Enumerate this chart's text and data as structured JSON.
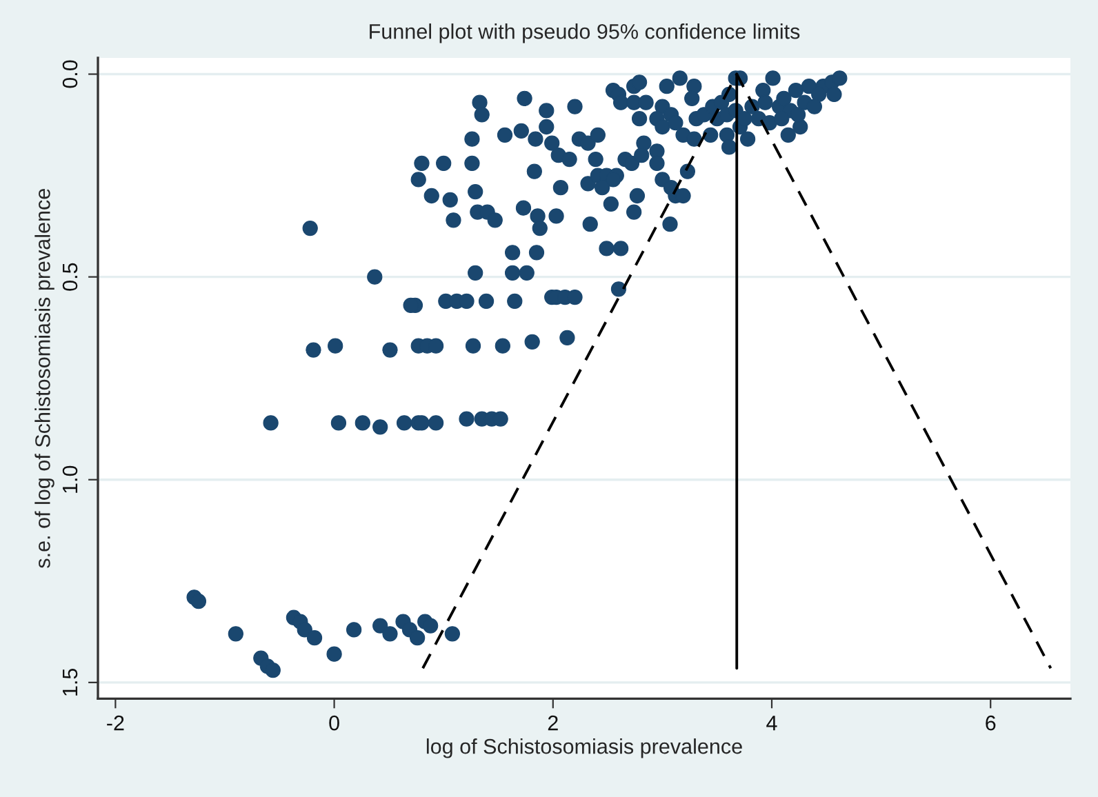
{
  "chart_data": {
    "type": "scatter",
    "title": "Funnel plot with pseudo 95% confidence limits",
    "xlabel": "log of Schistosomiasis prevalence",
    "ylabel": "s.e. of log of Schistosomiasis prevalence",
    "xlim": [
      -2.16,
      6.73
    ],
    "xticks": [
      -2,
      0,
      2,
      4,
      6
    ],
    "ylim": [
      1.54,
      -0.04
    ],
    "yticks": [
      {
        "value": 0,
        "label": "0.0"
      },
      {
        "value": 0.5,
        "label": "0.5"
      },
      {
        "value": 1,
        "label": "1.0"
      },
      {
        "value": 1.5,
        "label": "1.5"
      }
    ],
    "grid": "y",
    "legend": false,
    "series": [
      {
        "color": "#1a476f",
        "marker": "circle",
        "x": [
          1.33,
          1.35,
          1.74,
          1.94,
          1.26,
          1.56,
          1.71,
          1.84,
          1.94,
          0.8,
          1.0,
          1.26,
          1.83,
          0.77,
          0.89,
          1.06,
          1.29,
          1.31,
          1.4,
          1.47,
          1.09,
          1.73,
          1.86,
          1.88,
          -0.22,
          1.63,
          1.85,
          0.37,
          1.29,
          1.63,
          1.76,
          0.74,
          0.7,
          1.02,
          1.12,
          1.21,
          1.39,
          1.65,
          1.99,
          -0.19,
          0.01,
          0.51,
          0.77,
          0.85,
          0.93,
          1.27,
          1.54,
          1.81,
          2.13,
          -0.58,
          0.04,
          0.26,
          0.42,
          0.64,
          0.77,
          0.8,
          0.93,
          1.21,
          1.35,
          1.44,
          1.52,
          -1.28,
          -1.24,
          -0.9,
          -0.67,
          -0.61,
          -0.56,
          -0.37,
          -0.31,
          -0.27,
          -0.18,
          0.0,
          0.18,
          0.42,
          0.51,
          0.63,
          0.69,
          0.76,
          0.83,
          0.88,
          1.08,
          2.2,
          1.99,
          2.05,
          2.15,
          2.24,
          2.32,
          2.41,
          2.39,
          2.07,
          2.32,
          2.41,
          2.49,
          2.58,
          2.55,
          2.45,
          2.66,
          2.72,
          2.83,
          2.81,
          2.95,
          2.95,
          2.03,
          2.53,
          2.77,
          2.74,
          3.0,
          3.08,
          3.12,
          3.19,
          3.23,
          2.34,
          3.07,
          2.49,
          2.62,
          2.03,
          2.11,
          2.2,
          2.6,
          2.55,
          2.6,
          2.74,
          2.79,
          2.62,
          2.74,
          2.85,
          2.79,
          3.04,
          3.16,
          3.29,
          3.27,
          3.0,
          2.95,
          3.08,
          3.0,
          3.12,
          3.19,
          3.29,
          3.31,
          3.38,
          3.46,
          3.54,
          3.61,
          3.67,
          3.71,
          3.5,
          3.59,
          3.44,
          3.59,
          3.71,
          3.61,
          3.78,
          3.67,
          3.75,
          3.82,
          3.92,
          4.01,
          3.94,
          3.88,
          3.98,
          4.07,
          4.11,
          4.22,
          4.34,
          4.47,
          4.55,
          4.62,
          4.57,
          4.43,
          4.3,
          4.39,
          4.17,
          4.09,
          4.26,
          4.15,
          4.24
        ],
        "values": [
          0.07,
          0.1,
          0.06,
          0.09,
          0.16,
          0.15,
          0.14,
          0.16,
          0.13,
          0.22,
          0.22,
          0.22,
          0.24,
          0.26,
          0.3,
          0.31,
          0.29,
          0.34,
          0.34,
          0.36,
          0.36,
          0.33,
          0.35,
          0.38,
          0.38,
          0.44,
          0.44,
          0.5,
          0.49,
          0.49,
          0.49,
          0.57,
          0.57,
          0.56,
          0.56,
          0.56,
          0.56,
          0.56,
          0.55,
          0.68,
          0.67,
          0.68,
          0.67,
          0.67,
          0.67,
          0.67,
          0.67,
          0.66,
          0.65,
          0.86,
          0.86,
          0.86,
          0.87,
          0.86,
          0.86,
          0.86,
          0.86,
          0.85,
          0.85,
          0.85,
          0.85,
          1.29,
          1.3,
          1.38,
          1.44,
          1.46,
          1.47,
          1.34,
          1.35,
          1.37,
          1.39,
          1.43,
          1.37,
          1.36,
          1.38,
          1.35,
          1.37,
          1.39,
          1.35,
          1.36,
          1.38,
          0.08,
          0.17,
          0.2,
          0.21,
          0.16,
          0.17,
          0.15,
          0.21,
          0.28,
          0.27,
          0.25,
          0.25,
          0.25,
          0.26,
          0.28,
          0.21,
          0.22,
          0.17,
          0.2,
          0.19,
          0.22,
          0.35,
          0.32,
          0.3,
          0.34,
          0.26,
          0.28,
          0.3,
          0.3,
          0.24,
          0.37,
          0.37,
          0.43,
          0.43,
          0.55,
          0.55,
          0.55,
          0.53,
          0.04,
          0.05,
          0.03,
          0.02,
          0.07,
          0.07,
          0.07,
          0.11,
          0.03,
          0.01,
          0.03,
          0.06,
          0.08,
          0.11,
          0.1,
          0.13,
          0.12,
          0.15,
          0.16,
          0.11,
          0.1,
          0.08,
          0.07,
          0.05,
          0.01,
          0.01,
          0.11,
          0.1,
          0.15,
          0.15,
          0.13,
          0.18,
          0.16,
          0.09,
          0.11,
          0.08,
          0.04,
          0.01,
          0.07,
          0.11,
          0.12,
          0.08,
          0.06,
          0.04,
          0.03,
          0.03,
          0.02,
          0.01,
          0.05,
          0.05,
          0.07,
          0.08,
          0.09,
          0.11,
          0.13,
          0.15,
          0.1
        ]
      },
      {
        "type": "line",
        "color": "#000000",
        "line_style": "dashed",
        "marker": "none",
        "x": [
          0.81,
          3.68,
          6.55
        ],
        "values": [
          1.465,
          0,
          1.465
        ]
      },
      {
        "type": "line",
        "color": "#000000",
        "line_style": "solid",
        "marker": "none",
        "x": [
          3.68,
          3.68
        ],
        "values": [
          0,
          1.465
        ]
      }
    ]
  }
}
